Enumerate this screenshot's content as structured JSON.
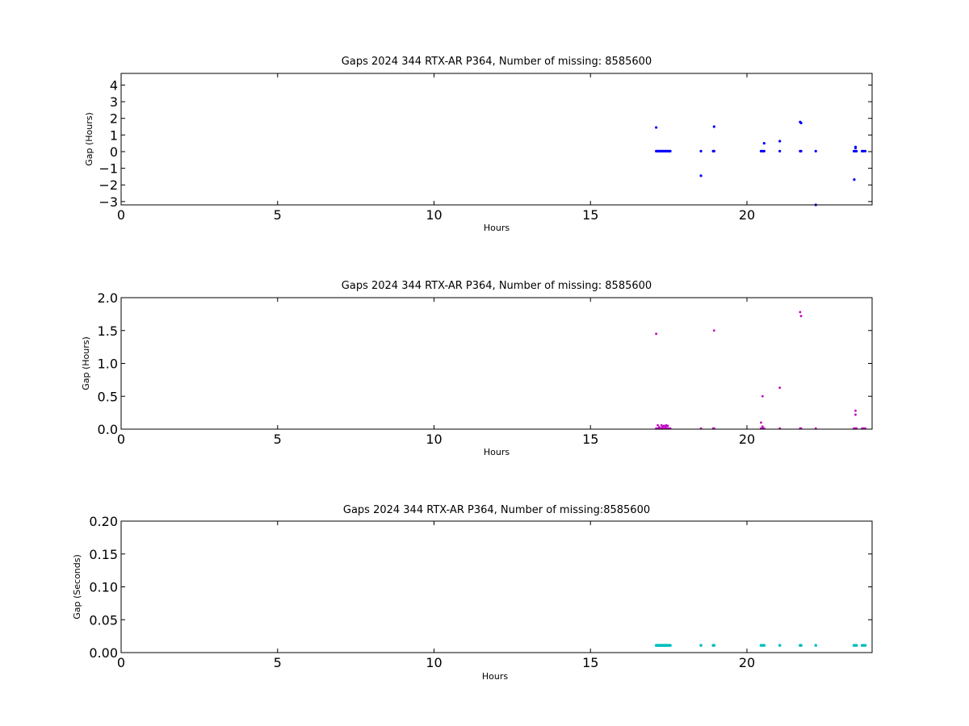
{
  "chart_data": [
    {
      "type": "scatter",
      "title": "Gaps 2024 344 RTX-AR  P364, Number of missing: 8585600",
      "xlabel": "Hours",
      "ylabel": "Gap (Hours)",
      "xlim": [
        0,
        24
      ],
      "ylim": [
        -3.2,
        4.7
      ],
      "xticks": [
        0,
        5,
        10,
        15,
        20
      ],
      "yticks": [
        4,
        3,
        2,
        1,
        0,
        -1,
        -2,
        -3
      ],
      "ytick_labels": [
        "4",
        "3",
        "2",
        "1",
        "0",
        "−1",
        "−2",
        "−3"
      ],
      "grid": false,
      "color": "#0000ff",
      "marker_size": 1.6,
      "series": [
        {
          "x": [
            17.1,
            17.13,
            17.16,
            17.19,
            17.22,
            17.25,
            17.28,
            17.31,
            17.34,
            17.37,
            17.4,
            17.43,
            17.46,
            17.49,
            17.52,
            17.55,
            18.53,
            18.92,
            18.95,
            20.45,
            20.5,
            20.55,
            21.05,
            21.7,
            21.73,
            22.2,
            23.42,
            23.47,
            23.5,
            23.68,
            23.72,
            23.78,
            17.1,
            18.53,
            18.95,
            20.55,
            21.05,
            21.7,
            21.73,
            22.2,
            23.43,
            23.47,
            23.47
          ],
          "y": [
            0.03,
            0.03,
            0.03,
            0.03,
            0.03,
            0.03,
            0.03,
            0.03,
            0.03,
            0.03,
            0.03,
            0.03,
            0.03,
            0.03,
            0.03,
            0.03,
            0.03,
            0.03,
            0.03,
            0.03,
            0.03,
            0.03,
            0.03,
            0.03,
            0.03,
            0.03,
            0.03,
            0.03,
            0.03,
            0.03,
            0.03,
            0.03,
            1.45,
            -1.45,
            1.5,
            0.5,
            0.63,
            1.78,
            1.72,
            -3.2,
            -1.68,
            0.28,
            0.22
          ]
        }
      ]
    },
    {
      "type": "scatter",
      "title": "Gaps 2024 344 RTX-AR  P364, Number of missing: 8585600",
      "xlabel": "Hours",
      "ylabel": "Gap (Hours)",
      "xlim": [
        0,
        24
      ],
      "ylim": [
        0,
        2.0
      ],
      "xticks": [
        0,
        5,
        10,
        15,
        20
      ],
      "yticks": [
        2.0,
        1.5,
        1.0,
        0.5,
        0.0
      ],
      "ytick_labels": [
        "2.0",
        "1.5",
        "1.0",
        "0.5",
        "0.0"
      ],
      "grid": false,
      "color": "#bf00bf",
      "marker_size": 1.4,
      "series": [
        {
          "x": [
            17.1,
            17.13,
            17.16,
            17.19,
            17.22,
            17.25,
            17.28,
            17.31,
            17.34,
            17.37,
            17.4,
            17.43,
            17.46,
            17.49,
            17.52,
            17.55,
            18.53,
            18.92,
            18.95,
            20.45,
            20.5,
            20.55,
            21.05,
            21.7,
            21.73,
            22.2,
            23.42,
            23.47,
            23.5,
            23.68,
            23.72,
            23.78,
            17.15,
            17.27,
            17.35,
            17.42,
            17.47,
            17.2,
            17.3,
            17.4,
            20.45,
            20.5,
            17.1,
            18.95,
            20.5,
            21.05,
            21.7,
            21.73,
            23.47,
            23.47
          ],
          "y": [
            0.01,
            0.01,
            0.01,
            0.01,
            0.01,
            0.01,
            0.01,
            0.01,
            0.01,
            0.01,
            0.01,
            0.01,
            0.01,
            0.01,
            0.01,
            0.01,
            0.01,
            0.01,
            0.01,
            0.01,
            0.01,
            0.01,
            0.01,
            0.01,
            0.01,
            0.01,
            0.01,
            0.01,
            0.01,
            0.01,
            0.01,
            0.01,
            0.06,
            0.06,
            0.05,
            0.06,
            0.05,
            0.03,
            0.04,
            0.03,
            0.1,
            0.04,
            1.45,
            1.5,
            0.5,
            0.63,
            1.78,
            1.72,
            0.28,
            0.22
          ]
        }
      ]
    },
    {
      "type": "scatter",
      "title": "Gaps 2024 344 RTX-AR  P364, Number of missing:8585600",
      "xlabel": "Hours",
      "ylabel": "Gap (Seconds)",
      "xlim": [
        0,
        24
      ],
      "ylim": [
        0,
        0.2
      ],
      "xticks": [
        0,
        5,
        10,
        15,
        20
      ],
      "yticks": [
        0.2,
        0.15,
        0.1,
        0.05,
        0.0
      ],
      "ytick_labels": [
        "0.20",
        "0.15",
        "0.10",
        "0.05",
        "0.00"
      ],
      "grid": false,
      "color": "#00bfbf",
      "marker_size": 1.8,
      "series": [
        {
          "x": [
            17.1,
            17.13,
            17.16,
            17.19,
            17.22,
            17.25,
            17.28,
            17.31,
            17.34,
            17.37,
            17.4,
            17.43,
            17.46,
            17.49,
            17.52,
            17.55,
            18.53,
            18.92,
            18.95,
            20.45,
            20.5,
            20.55,
            21.05,
            21.7,
            21.73,
            22.2,
            23.42,
            23.47,
            23.5,
            23.68,
            23.72,
            23.78
          ],
          "y": [
            0.011,
            0.011,
            0.011,
            0.011,
            0.011,
            0.011,
            0.011,
            0.011,
            0.011,
            0.011,
            0.011,
            0.011,
            0.011,
            0.011,
            0.011,
            0.011,
            0.011,
            0.011,
            0.011,
            0.011,
            0.011,
            0.011,
            0.011,
            0.011,
            0.011,
            0.011,
            0.011,
            0.011,
            0.011,
            0.011,
            0.011,
            0.011
          ]
        }
      ]
    }
  ]
}
